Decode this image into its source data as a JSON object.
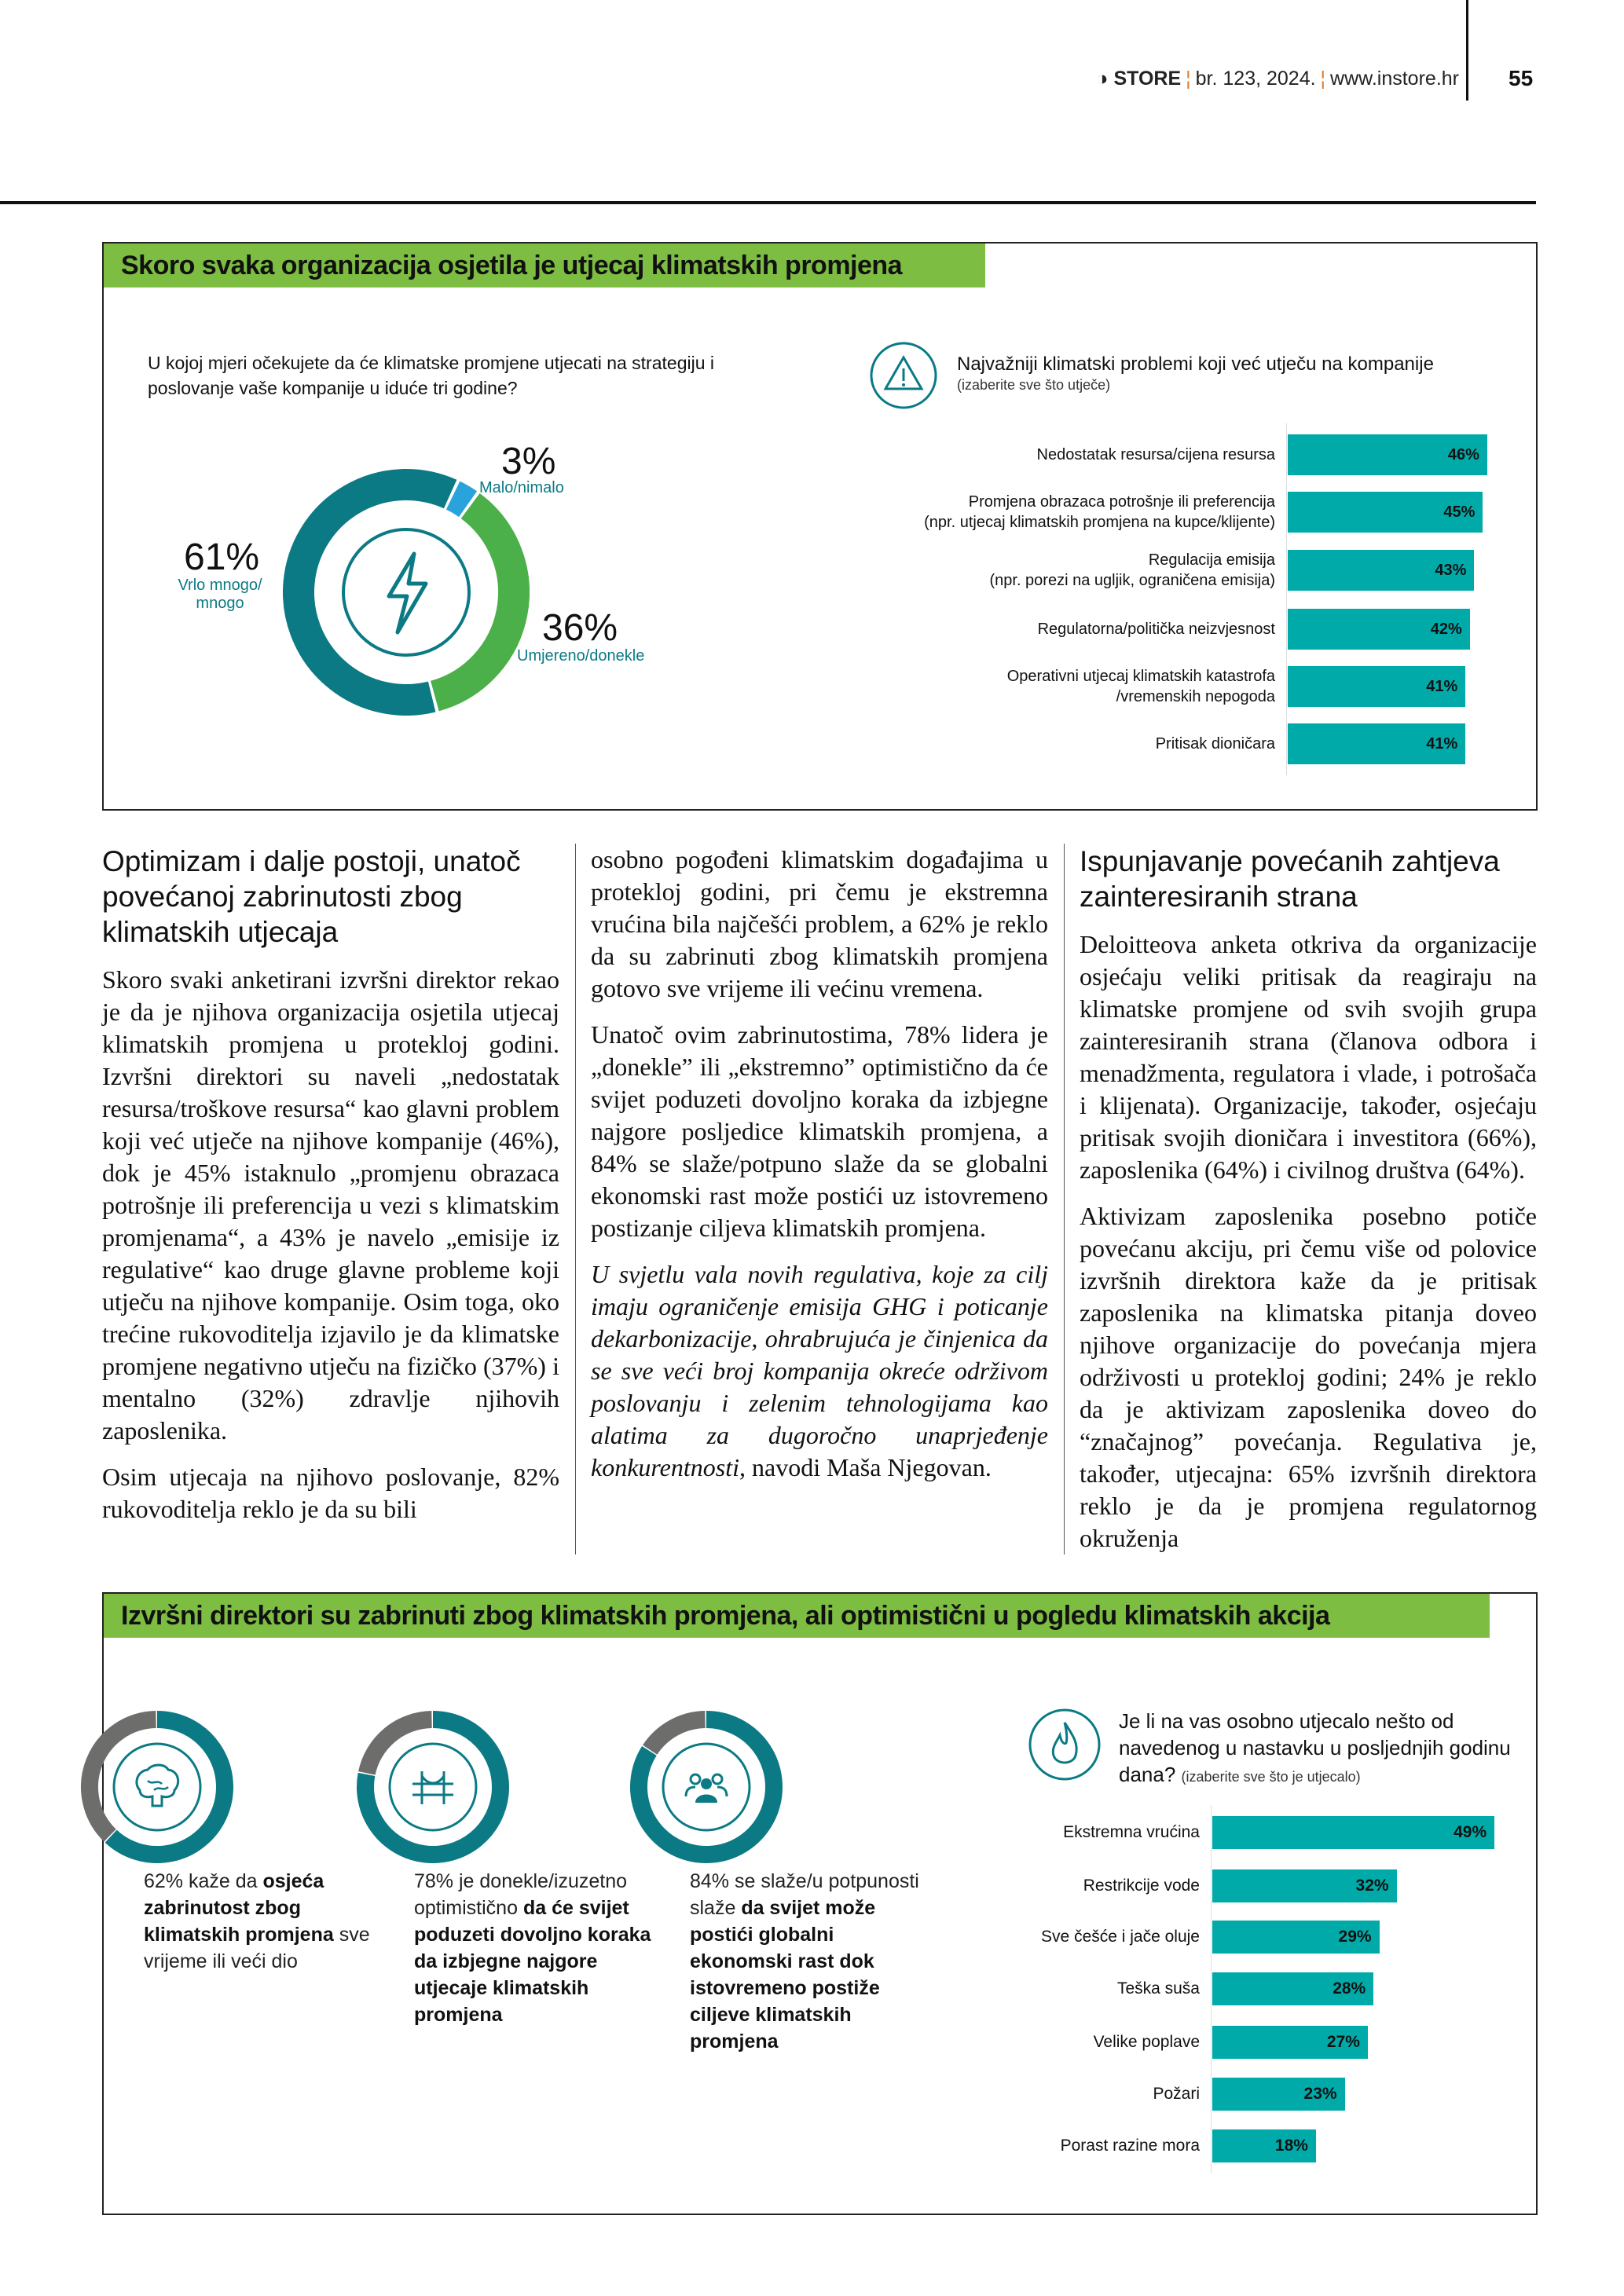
{
  "header": {
    "brand": "STORE",
    "issue": "br. 123, 2024.",
    "website": "www.instore.hr",
    "page_number": "55"
  },
  "section1": {
    "title": "Skoro svaka organizacija osjetila je utjecaj klimatskih promjena",
    "donut_question": "U kojoj mjeri očekujete da će klimatske promjene utjecati na strategiju i poslovanje vaše kompanije u iduće tri godine?",
    "bars_title": "Najvažniji klimatski problemi koji već utječu na kompanije",
    "bars_subtitle": "(izaberite sve što utječe)",
    "icon_donut": "lightning-bolt-icon",
    "icon_bars": "warning-triangle-icon"
  },
  "section2": {
    "title": "Izvršni direktori su zabrinuti zbog klimatskih promjena, ali optimistični u pogledu klimatskih akcija",
    "bars_title": "Je li na vas osobno utjecalo nešto od navedenog u nastavku u posljednjih godinu dana?",
    "bars_subtitle": "(izaberite sve što je utjecalo)",
    "icon_bars": "flame-icon",
    "stats": [
      {
        "icon": "brain-icon",
        "value": 62,
        "parts": [
          "62% kaže da ",
          "osjeća zabrinutost zbog klimatskih promjena",
          " sve vrijeme ili veći dio"
        ]
      },
      {
        "icon": "bridge-icon",
        "value": 78,
        "parts": [
          "78% je donekle/izuzetno optimistično ",
          "da će svijet poduzeti dovoljno koraka da izbjegne najgore utjecaje klimatskih promjena",
          ""
        ]
      },
      {
        "icon": "people-group-icon",
        "value": 84,
        "parts": [
          "84% se slaže/u potpunosti slaže ",
          "da svijet može postići globalni ekonomski rast dok istovremeno postiže ciljeve klimatskih promjena",
          ""
        ]
      }
    ]
  },
  "article": {
    "col1_heading": "Optimizam i dalje postoji, unatoč povećanoj zabrinutosti zbog klimatskih utjecaja",
    "col1_p1": "Skoro svaki anketirani izvršni direktor rekao je da je njihova organizacija osjetila utjecaj klimatskih promjena u protekloj godini. Izvršni direktori su naveli „nedostatak resursa/troškove resursa“ kao glavni problem koji već utječe na njihove kompanije (46%), dok je 45% istaknulo „promjenu obrazaca potrošnje ili preferencija u vezi s klimatskim promjenama“, a 43% je navelo „emisije iz regulative“ kao druge glavne probleme koji utječu na njihove kompanije. Osim toga, oko trećine rukovoditelja izjavilo je da klimatske promjene negativno utječu na fizičko (37%) i mentalno (32%) zdravlje njihovih zaposlenika.",
    "col1_p2": "Osim utjecaja na njihovo poslovanje, 82% rukovoditelja reklo je da su bili",
    "col2_p1": "osobno pogođeni klimatskim događajima u protekloj godini, pri čemu je ekstremna vrućina bila najčešći problem, a 62% je reklo da su zabrinuti zbog klimatskih promjena gotovo sve vrijeme ili većinu vremena.",
    "col2_p2": "Unatoč ovim zabrinutostima, 78% lidera je „donekle” ili „ekstremno” optimistično da će svijet poduzeti dovoljno koraka da izbjegne najgore posljedice klimatskih promjena, a 84% se slaže/potpuno slaže da se globalni ekonomski rast može postići uz istovremeno postizanje ciljeva klimatskih promjena.",
    "col2_quote": "U svjetlu vala novih regulativa, koje za cilj imaju ograničenje emisija GHG i poticanje dekarbonizacije, ohrabrujuća je činjenica da se sve veći broj kompanija okreće održivom poslovanju i zelenim tehnologijama kao alatima za dugoročno unaprjeđenje konkurentnosti",
    "col2_attribution": ", navodi Maša Njegovan.",
    "col3_heading": "Ispunjavanje povećanih zahtjeva zainteresiranih strana",
    "col3_p1": "Deloitteova anketa otkriva da organizacije osjećaju veliki pritisak da reagiraju na klimatske promjene od svih svojih grupa zainteresiranih strana (članova odbora i menadžmenta, regulatora i vlade, i potrošača i klijenata). Organizacije, također, osjećaju pritisak svojih dioničara i investitora (66%), zaposlenika (64%) i civilnog društva (64%).",
    "col3_p2": "Aktivizam zaposlenika posebno potiče povećanu akciju, pri čemu više od polovice izvršnih direktora kaže da je pritisak zaposlenika na klimatska pitanja doveo njihove organizacije do povećanja mjera održivosti u protekloj godini; 24% je reklo da je aktivizam zaposlenika doveo do “značajnog” povećanja. Regulativa je, također, utjecajna: 65% izvršnih direktora reklo je da je promjena regulatornog okruženja"
  },
  "chart_data": [
    {
      "type": "pie",
      "variant": "donut",
      "title": "U kojoj mjeri očekujete da će klimatske promjene utjecati na strategiju i poslovanje vaše kompanije u iduće tri godine?",
      "slices": [
        {
          "label": "Malo/nimalo",
          "value": 3,
          "display": "3%",
          "color": "#2aa3dc"
        },
        {
          "label": "Umjereno/donekle",
          "value": 36,
          "display": "36%",
          "color": "#4cb04a"
        },
        {
          "label": "Vrlo mnogo/ mnogo",
          "value": 61,
          "display": "61%",
          "color": "#0b7a84"
        }
      ]
    },
    {
      "type": "bar",
      "orientation": "horizontal",
      "title": "Najvažniji klimatski problemi koji već utječu na kompanije",
      "color": "#00aaa9",
      "categories": [
        "Nedostatak resursa/cijena resursa",
        "Promjena obrazaca  potrošnje ili preferencija\n(npr. utjecaj klimatskih promjena na kupce/klijente)",
        "Regulacija emisija\n(npr. porezi na ugljik, ograničena emisija)",
        "Regulatorna/politička neizvjesnost",
        "Operativni utjecaj klimatskih katastrofa\n/vremenskih nepogoda",
        "Pritisak dioničara"
      ],
      "values": [
        46,
        45,
        43,
        42,
        41,
        41
      ],
      "labels": [
        "46%",
        "45%",
        "43%",
        "42%",
        "41%",
        "41%"
      ]
    },
    {
      "type": "bar",
      "orientation": "horizontal",
      "title": "Je li na vas osobno utjecalo nešto od navedenog u nastavku u posljednjih godinu dana?",
      "color": "#00aaa9",
      "categories": [
        "Ekstremna vrućina",
        "Restrikcije vode",
        "Sve češće i jače oluje",
        "Teška suša",
        "Velike poplave",
        "Požari",
        "Porast razine mora"
      ],
      "values": [
        49,
        32,
        29,
        28,
        27,
        23,
        18
      ],
      "labels": [
        "49%",
        "32%",
        "29%",
        "28%",
        "27%",
        "23%",
        "18%"
      ]
    }
  ]
}
